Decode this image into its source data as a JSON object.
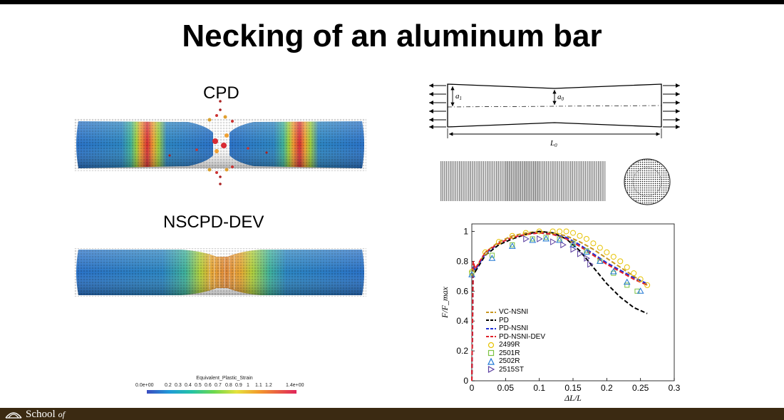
{
  "slide": {
    "title": "Necking of an aluminum bar",
    "panels": {
      "cpd_label": "CPD",
      "nscpd_label": "NSCPD-DEV"
    },
    "colorbar": {
      "title": "Equivalent_Plastic_Strain",
      "ticks": [
        "0.0e+00",
        "0.2",
        "0.3",
        "0.4",
        "0.5",
        "0.6",
        "0.7",
        "0.8",
        "0.9",
        "1",
        "1.1",
        "1.2",
        "1.4e+00"
      ]
    },
    "schematic": {
      "a1": "a",
      "a1_sub": "1",
      "a0": "a",
      "a0_sub": "0",
      "l0": "L",
      "l0_sub": "0"
    },
    "footer": {
      "logo_text": "School",
      "logo_suffix": "of"
    }
  },
  "colors": {
    "footer": "#3b2a12",
    "VC-NSNI": "#c8961e",
    "PD": "#000000",
    "PD-NSNI": "#1f2fd6",
    "PD-NSNI-DEV": "#e0202a",
    "2499R": "#e6c200",
    "2501R": "#7cc242",
    "2502R": "#1f77d4",
    "2515ST": "#5b3fa0"
  },
  "chart_data": {
    "type": "line",
    "xlabel": "ΔL/L",
    "ylabel": "F/F_max",
    "xlim": [
      0,
      0.3
    ],
    "ylim": [
      0,
      1.05
    ],
    "xticks": [
      "0",
      "0.05",
      "0.1",
      "0.15",
      "0.2",
      "0.25",
      "0.3"
    ],
    "yticks": [
      "0",
      "0.2",
      "0.4",
      "0.6",
      "0.8",
      "1"
    ],
    "legend_position": "bottom-left",
    "series": [
      {
        "name": "VC-NSNI",
        "style": "dashed",
        "x": [
          0,
          0.002,
          0.005,
          0.02,
          0.04,
          0.06,
          0.08,
          0.1,
          0.12,
          0.14,
          0.16,
          0.18,
          0.2,
          0.22,
          0.24,
          0.26
        ],
        "y": [
          0,
          0.78,
          0.74,
          0.86,
          0.93,
          0.97,
          0.99,
          1.0,
          0.99,
          0.97,
          0.93,
          0.88,
          0.82,
          0.76,
          0.7,
          0.64
        ]
      },
      {
        "name": "PD",
        "style": "dashed",
        "x": [
          0,
          0.002,
          0.005,
          0.02,
          0.04,
          0.06,
          0.08,
          0.1,
          0.12,
          0.14,
          0.16,
          0.18,
          0.2,
          0.22,
          0.24,
          0.26
        ],
        "y": [
          0,
          0.75,
          0.73,
          0.84,
          0.91,
          0.95,
          0.98,
          1.0,
          0.99,
          0.95,
          0.87,
          0.76,
          0.65,
          0.56,
          0.49,
          0.45
        ]
      },
      {
        "name": "PD-NSNI",
        "style": "dashed",
        "x": [
          0,
          0.002,
          0.005,
          0.02,
          0.04,
          0.06,
          0.08,
          0.1,
          0.12,
          0.14,
          0.16,
          0.18,
          0.2,
          0.22,
          0.24,
          0.26
        ],
        "y": [
          0,
          0.77,
          0.74,
          0.85,
          0.92,
          0.96,
          0.98,
          0.99,
          0.98,
          0.96,
          0.91,
          0.85,
          0.79,
          0.74,
          0.69,
          0.65
        ]
      },
      {
        "name": "PD-NSNI-DEV",
        "style": "dashed",
        "x": [
          0,
          0.002,
          0.005,
          0.02,
          0.04,
          0.06,
          0.08,
          0.1,
          0.12,
          0.14,
          0.16,
          0.18,
          0.2,
          0.22,
          0.24,
          0.26
        ],
        "y": [
          0,
          0.8,
          0.75,
          0.86,
          0.92,
          0.96,
          0.98,
          0.99,
          0.98,
          0.95,
          0.9,
          0.84,
          0.78,
          0.73,
          0.68,
          0.64
        ]
      },
      {
        "name": "2499R",
        "marker": "circle",
        "x": [
          0.0,
          0.02,
          0.04,
          0.06,
          0.08,
          0.1,
          0.12,
          0.13,
          0.14,
          0.15,
          0.16,
          0.17,
          0.18,
          0.19,
          0.2,
          0.21,
          0.22,
          0.23,
          0.24,
          0.25,
          0.26
        ],
        "y": [
          0.73,
          0.86,
          0.93,
          0.97,
          0.99,
          1.0,
          1.0,
          1.0,
          1.0,
          0.99,
          0.97,
          0.95,
          0.92,
          0.89,
          0.86,
          0.83,
          0.8,
          0.76,
          0.72,
          0.68,
          0.64
        ]
      },
      {
        "name": "2501R",
        "marker": "square",
        "x": [
          0.0,
          0.03,
          0.06,
          0.09,
          0.11,
          0.13,
          0.15,
          0.17,
          0.19,
          0.21,
          0.23,
          0.245
        ],
        "y": [
          0.72,
          0.84,
          0.91,
          0.95,
          0.96,
          0.95,
          0.92,
          0.87,
          0.8,
          0.72,
          0.64,
          0.6
        ]
      },
      {
        "name": "2502R",
        "marker": "triangle-up",
        "x": [
          0.0,
          0.03,
          0.06,
          0.09,
          0.11,
          0.13,
          0.15,
          0.17,
          0.19,
          0.21,
          0.23,
          0.25
        ],
        "y": [
          0.71,
          0.82,
          0.9,
          0.94,
          0.95,
          0.94,
          0.91,
          0.86,
          0.8,
          0.73,
          0.66,
          0.6
        ]
      },
      {
        "name": "2515ST",
        "marker": "triangle-right",
        "x": [
          0.08,
          0.1,
          0.12,
          0.135,
          0.15,
          0.16,
          0.17,
          0.175
        ],
        "y": [
          0.95,
          0.95,
          0.93,
          0.91,
          0.88,
          0.85,
          0.82,
          0.78
        ]
      }
    ]
  }
}
